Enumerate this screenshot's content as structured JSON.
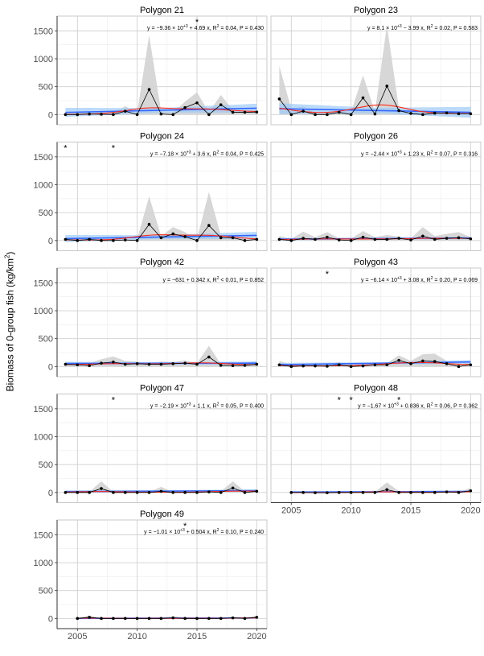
{
  "chart_data": {
    "type": "line",
    "ylabel": "Biomass of 0-group fish (kg/km",
    "ylabel_sup": "2",
    "ylabel_tail": ")",
    "ylim": [
      -183,
      1765
    ],
    "xlim": [
      2003.3,
      2020.85
    ],
    "yticks": [
      0,
      500,
      1000,
      1500
    ],
    "xticks": [
      2005,
      2010,
      2015,
      2020
    ],
    "grid": true,
    "colors": {
      "points": "#000000",
      "ci_ribbon": "#d3d3d3",
      "linear_fit": "#3366ff",
      "linear_ci": "#9ecbf7",
      "smooth": "#ff2a1a"
    },
    "panels": [
      {
        "title": "Polygon 21",
        "years_start": 2004,
        "values": [
          0,
          0,
          10,
          5,
          0,
          60,
          0,
          450,
          10,
          0,
          125,
          210,
          0,
          175,
          40,
          40,
          45
        ],
        "ci_upper": [
          20,
          20,
          40,
          40,
          30,
          150,
          40,
          1420,
          60,
          40,
          230,
          400,
          40,
          350,
          80,
          70,
          80
        ],
        "fit": {
          "intercept": -9360,
          "slope": 4.69
        },
        "eq": {
          "lead": "−9.36",
          "exp": "+3",
          "slope": "+ 4.69",
          "r2_op": "=",
          "r2": "0.04",
          "p": "0.430"
        },
        "asterisk_years": [
          2015
        ]
      },
      {
        "title": "Polygon 23",
        "years_start": 2004,
        "values": [
          280,
          0,
          60,
          0,
          0,
          40,
          0,
          300,
          10,
          510,
          70,
          20,
          0,
          25,
          30,
          15,
          15
        ],
        "ci_upper": [
          870,
          100,
          150,
          30,
          30,
          80,
          50,
          700,
          50,
          1600,
          110,
          60,
          30,
          60,
          60,
          40,
          40
        ],
        "fit": {
          "intercept": 8100,
          "slope": -3.99
        },
        "eq": {
          "lead": "8.1",
          "exp": "+3",
          "slope": "− 3.99",
          "r2_op": "=",
          "r2": "0.02",
          "p": "0.583"
        },
        "asterisk_years": []
      },
      {
        "title": "Polygon 24",
        "years_start": 2004,
        "values": [
          20,
          0,
          20,
          0,
          0,
          10,
          0,
          290,
          50,
          120,
          70,
          0,
          270,
          50,
          50,
          0,
          20
        ],
        "ci_upper": [
          40,
          20,
          40,
          20,
          20,
          30,
          30,
          790,
          80,
          240,
          150,
          30,
          870,
          90,
          80,
          20,
          40
        ],
        "fit": {
          "intercept": -7180,
          "slope": 3.6
        },
        "eq": {
          "lead": "−7.18",
          "exp": "+3",
          "slope": "+ 3.6",
          "r2_op": "=",
          "r2": "0.04",
          "p": "0.425"
        },
        "asterisk_years": [
          2004,
          2008
        ]
      },
      {
        "title": "Polygon 26",
        "years_start": 2004,
        "values": [
          20,
          0,
          40,
          20,
          60,
          10,
          0,
          60,
          20,
          20,
          40,
          10,
          80,
          20,
          40,
          50,
          30
        ],
        "ci_upper": [
          80,
          30,
          160,
          60,
          150,
          40,
          30,
          170,
          60,
          100,
          70,
          40,
          240,
          80,
          120,
          150,
          60
        ],
        "fit": {
          "intercept": -2440,
          "slope": 1.23
        },
        "eq": {
          "lead": "−2.44",
          "exp": "+3",
          "slope": "+ 1.23",
          "r2_op": "=",
          "r2": "0.07",
          "p": "0.316"
        },
        "asterisk_years": []
      },
      {
        "title": "Polygon 42",
        "years_start": 2004,
        "values": [
          40,
          30,
          15,
          60,
          80,
          40,
          50,
          40,
          40,
          50,
          60,
          40,
          170,
          20,
          15,
          20,
          40
        ],
        "ci_upper": [
          60,
          60,
          60,
          130,
          180,
          100,
          90,
          60,
          90,
          80,
          110,
          60,
          370,
          40,
          40,
          60,
          100
        ],
        "fit": {
          "intercept": -631,
          "slope": 0.342
        },
        "eq": {
          "lead": "−631",
          "exp": null,
          "slope": "+ 0.342",
          "r2_op": "<",
          "r2": "0.01",
          "p": "0.852"
        },
        "asterisk_years": []
      },
      {
        "title": "Polygon 43",
        "years_start": 2004,
        "values": [
          30,
          0,
          10,
          10,
          5,
          30,
          0,
          10,
          30,
          30,
          110,
          50,
          100,
          90,
          50,
          0,
          30
        ],
        "ci_upper": [
          100,
          30,
          40,
          30,
          40,
          80,
          30,
          40,
          60,
          60,
          200,
          100,
          220,
          230,
          100,
          40,
          60
        ],
        "fit": {
          "intercept": -6140,
          "slope": 3.08
        },
        "eq": {
          "lead": "−6.14",
          "exp": "+3",
          "slope": "+ 3.08",
          "r2_op": "=",
          "r2": "0.20",
          "p": "0.069"
        },
        "asterisk_years": [
          2008
        ]
      },
      {
        "title": "Polygon 47",
        "years_start": 2004,
        "values": [
          0,
          0,
          0,
          70,
          0,
          0,
          0,
          0,
          20,
          0,
          0,
          0,
          10,
          0,
          80,
          0,
          20
        ],
        "ci_upper": [
          10,
          10,
          10,
          200,
          10,
          10,
          10,
          10,
          100,
          10,
          10,
          20,
          20,
          20,
          200,
          20,
          30
        ],
        "fit": {
          "intercept": -2190,
          "slope": 1.1
        },
        "eq": {
          "lead": "−2.19",
          "exp": "+3",
          "slope": "+ 1.1",
          "r2_op": "=",
          "r2": "0.05",
          "p": "0.400"
        },
        "asterisk_years": [
          2008
        ]
      },
      {
        "title": "Polygon 48",
        "years_start": 2005,
        "values": [
          0,
          0,
          -5,
          -5,
          0,
          0,
          0,
          0,
          50,
          0,
          0,
          0,
          0,
          10,
          0,
          30
        ],
        "ci_upper": [
          10,
          10,
          10,
          10,
          10,
          10,
          10,
          10,
          180,
          20,
          10,
          10,
          10,
          30,
          10,
          80
        ],
        "fit": {
          "intercept": -1670,
          "slope": 0.836
        },
        "eq": {
          "lead": "−1.67",
          "exp": "+3",
          "slope": "+ 0.836",
          "r2_op": "=",
          "r2": "0.06",
          "p": "0.362"
        },
        "asterisk_years": [
          2009,
          2010,
          2014
        ]
      },
      {
        "title": "Polygon 49",
        "years_start": 2005,
        "values": [
          0,
          20,
          0,
          0,
          0,
          0,
          0,
          0,
          10,
          0,
          0,
          0,
          0,
          10,
          0,
          20
        ],
        "ci_upper": [
          10,
          50,
          10,
          10,
          10,
          10,
          10,
          20,
          40,
          20,
          10,
          10,
          10,
          30,
          10,
          50
        ],
        "fit": {
          "intercept": -1010,
          "slope": 0.504
        },
        "eq": {
          "lead": "−1.01",
          "exp": "+3",
          "slope": "+ 0.504",
          "r2_op": "=",
          "r2": "0.10",
          "p": "0.240"
        },
        "asterisk_years": [
          2014
        ]
      }
    ]
  }
}
